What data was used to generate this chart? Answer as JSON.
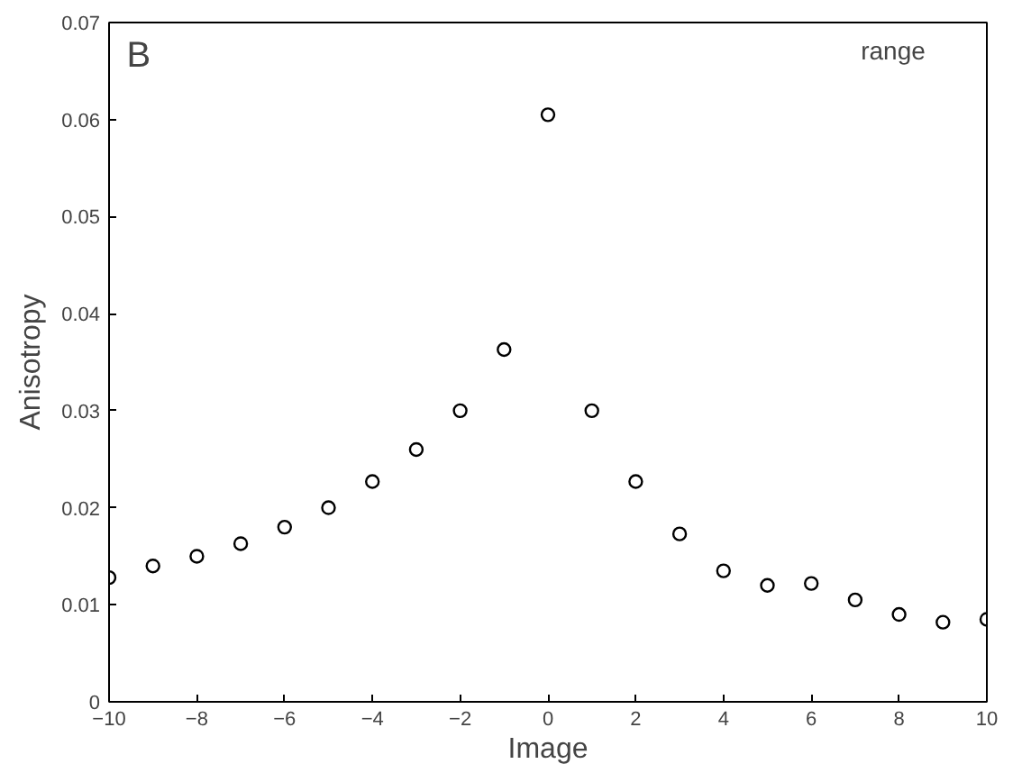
{
  "chart_data": {
    "type": "scatter",
    "xlabel": "Image",
    "ylabel": "Anisotropy",
    "annotations": [
      "B",
      "range"
    ],
    "x": [
      -10,
      -9,
      -8,
      -7,
      -6,
      -5,
      -4,
      -3,
      -2,
      -1,
      0,
      1,
      2,
      3,
      4,
      5,
      6,
      7,
      8,
      9,
      10
    ],
    "series": [
      {
        "color": "#000000",
        "values": [
          0.0128,
          0.014,
          0.015,
          0.0163,
          0.018,
          0.02,
          0.0227,
          0.026,
          0.03,
          0.0363,
          0.0605,
          0.03,
          0.0227,
          0.0173,
          0.0135,
          0.012,
          0.0122,
          0.0105,
          0.009,
          0.0082,
          0.0085
        ]
      }
    ],
    "xlim": [
      -10,
      10
    ],
    "ylim": [
      0,
      0.07
    ],
    "xticks": [
      -10,
      -8,
      -6,
      -4,
      -2,
      0,
      2,
      4,
      6,
      8,
      10
    ],
    "yticks": [
      0,
      0.01,
      0.02,
      0.03,
      0.04,
      0.05,
      0.06,
      0.07
    ],
    "marker": "circle",
    "grid": false
  }
}
